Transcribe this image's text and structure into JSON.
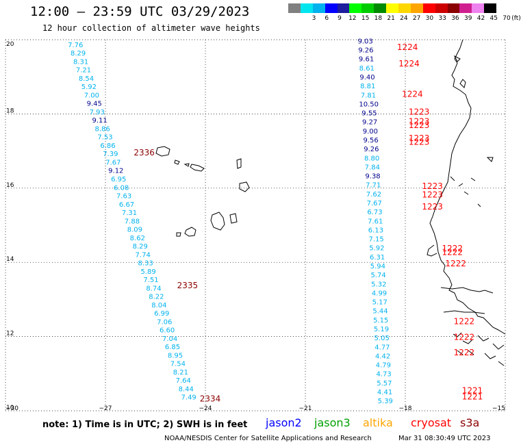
{
  "header": {
    "title": "12:00 – 23:59 UTC 03/29/2023",
    "subtitle": "12 hour collection of altimeter wave heights"
  },
  "legend": {
    "unit": "(ft)",
    "bins": [
      {
        "label": "",
        "color": "#808080"
      },
      {
        "label": "3",
        "color": "#00e5ee"
      },
      {
        "label": "6",
        "color": "#00b2ee"
      },
      {
        "label": "9",
        "color": "#0000ff"
      },
      {
        "label": "12",
        "color": "#1e1e9e"
      },
      {
        "label": "15",
        "color": "#00ff00"
      },
      {
        "label": "18",
        "color": "#00cd00"
      },
      {
        "label": "21",
        "color": "#008b00"
      },
      {
        "label": "24",
        "color": "#ffff00"
      },
      {
        "label": "27",
        "color": "#ffd700"
      },
      {
        "label": "30",
        "color": "#ffa500"
      },
      {
        "label": "33",
        "color": "#ff0000"
      },
      {
        "label": "36",
        "color": "#cd0000"
      },
      {
        "label": "39",
        "color": "#8b0000"
      },
      {
        "label": "42",
        "color": "#d02090"
      },
      {
        "label": "45",
        "color": "#ee82ee"
      },
      {
        "label": "70",
        "color": "#000000"
      }
    ]
  },
  "map": {
    "lon_ticks": [
      "−30",
      "−27",
      "−24",
      "−21",
      "−18",
      "−15"
    ],
    "lat_ticks": [
      "10",
      "12",
      "14",
      "16",
      "18",
      "20"
    ],
    "lon_range": [
      -30,
      -15
    ],
    "lat_range": [
      10,
      20
    ],
    "colors": {
      "light": "#00b2ee",
      "dark": "#00008b",
      "red": "#ff0000",
      "darkred": "#8b0000"
    },
    "tracks": [
      {
        "lon_start": -27.9,
        "lon_end": -24.5,
        "lat_start": 19.8,
        "lat_end": 10.3,
        "values": [
          "7.76",
          "8.29",
          "8.31",
          "7.21",
          "8.54",
          "5.92",
          "7.00",
          "9.45",
          "7.93",
          "9.11",
          "8.86",
          "7.53",
          "6.86",
          "7.39",
          "7.67",
          "9.12",
          "6.95",
          "6.08",
          "7.63",
          "6.67",
          "7.31",
          "7.88",
          "8.09",
          "8.62",
          "8.29",
          "7.74",
          "8.33",
          "5.89",
          "7.51",
          "8.74",
          "8.22",
          "8.04",
          "6.99",
          "7.06",
          "6.60",
          "7.04",
          "6.85",
          "8.95",
          "7.54",
          "8.21",
          "7.64",
          "8.44",
          "7.49"
        ],
        "dark_idx": [
          7,
          9,
          15
        ]
      },
      {
        "lon_start": -19.2,
        "lon_end": -18.6,
        "lat_start": 19.9,
        "lat_end": 10.2,
        "values": [
          "9.03",
          "9.26",
          "9.61",
          "8.61",
          "9.40",
          "8.81",
          "7.81",
          "10.50",
          "9.55",
          "9.27",
          "9.00",
          "9.56",
          "9.26",
          "8.80",
          "7.84",
          "9.38",
          "7.71",
          "7.62",
          "7.67",
          "6.73",
          "7.61",
          "6.13",
          "7.15",
          "5.92",
          "6.31",
          "5.94",
          "5.74",
          "5.32",
          "4.99",
          "5.17",
          "5.44",
          "5.15",
          "5.19",
          "5.05",
          "4.77",
          "4.42",
          "4.79",
          "4.73",
          "5.57",
          "4.41",
          "5.39"
        ],
        "dark_idx": [
          0,
          1,
          2,
          4,
          7,
          8,
          9,
          10,
          11,
          12,
          15
        ]
      }
    ],
    "time_labels": [
      {
        "text": "1224",
        "color": "red",
        "lon": -18.25,
        "lat": 19.72
      },
      {
        "text": "1224",
        "color": "red",
        "lon": -18.2,
        "lat": 19.28
      },
      {
        "text": "1224",
        "color": "red",
        "lon": -18.1,
        "lat": 18.46
      },
      {
        "text": "1223",
        "color": "red",
        "lon": -17.9,
        "lat": 17.98
      },
      {
        "text": "1223",
        "color": "red",
        "lon": -17.9,
        "lat": 17.72
      },
      {
        "text": "1223",
        "color": "red",
        "lon": -17.9,
        "lat": 17.62
      },
      {
        "text": "1223",
        "color": "red",
        "lon": -17.9,
        "lat": 17.27
      },
      {
        "text": "1223",
        "color": "red",
        "lon": -17.9,
        "lat": 17.17
      },
      {
        "text": "1223",
        "color": "red",
        "lon": -17.5,
        "lat": 15.98
      },
      {
        "text": "1223",
        "color": "red",
        "lon": -17.5,
        "lat": 15.75
      },
      {
        "text": "1223",
        "color": "red",
        "lon": -17.5,
        "lat": 15.42
      },
      {
        "text": "1222",
        "color": "red",
        "lon": -16.9,
        "lat": 14.3
      },
      {
        "text": "1222",
        "color": "red",
        "lon": -16.9,
        "lat": 14.2
      },
      {
        "text": "1222",
        "color": "red",
        "lon": -16.8,
        "lat": 13.89
      },
      {
        "text": "1222",
        "color": "red",
        "lon": -16.55,
        "lat": 12.33
      },
      {
        "text": "1222",
        "color": "red",
        "lon": -16.55,
        "lat": 11.91
      },
      {
        "text": "1222",
        "color": "red",
        "lon": -16.55,
        "lat": 11.49
      },
      {
        "text": "1221",
        "color": "red",
        "lon": -16.3,
        "lat": 10.47
      },
      {
        "text": "1221",
        "color": "red",
        "lon": -16.3,
        "lat": 10.3
      },
      {
        "text": "2336",
        "color": "darkred",
        "lon": -26.15,
        "lat": 16.88
      },
      {
        "text": "2335",
        "color": "darkred",
        "lon": -24.85,
        "lat": 13.3
      },
      {
        "text": "2334",
        "color": "darkred",
        "lon": -24.17,
        "lat": 10.25
      }
    ]
  },
  "footer": {
    "note": "note: 1) Time is in UTC; 2) SWH is in feet",
    "satellites": [
      {
        "name": "jason2",
        "color": "#0000ff"
      },
      {
        "name": "jason3",
        "color": "#00a000"
      },
      {
        "name": "altika",
        "color": "#ffa500"
      },
      {
        "name": "cryosat",
        "color": "#ff0000"
      },
      {
        "name": "s3a",
        "color": "#8b0000"
      }
    ],
    "credit": "NOAA/NESDIS Center for Satellite Applications and Research",
    "timestamp": "Mar 31 08:30:49 UTC 2023"
  }
}
